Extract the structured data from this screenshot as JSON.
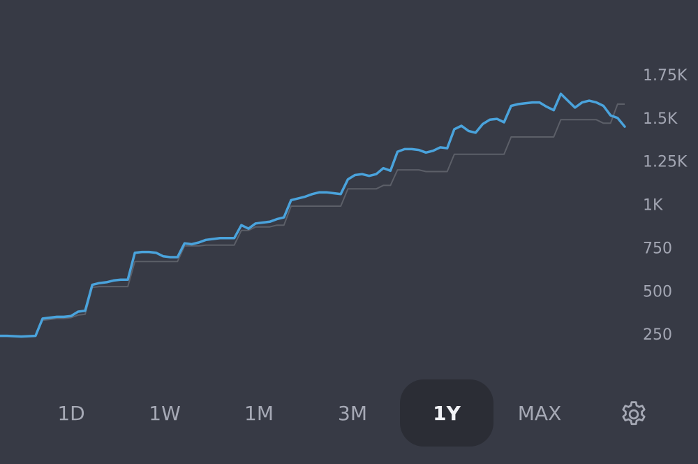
{
  "chart_data": {
    "type": "line",
    "ylim": [
      0,
      1960
    ],
    "y_ticks": [
      {
        "value": 250,
        "label": "250"
      },
      {
        "value": 500,
        "label": "500"
      },
      {
        "value": 750,
        "label": "750"
      },
      {
        "value": 1000,
        "label": "1K"
      },
      {
        "value": 1250,
        "label": "1.25K"
      },
      {
        "value": 1500,
        "label": "1.5K"
      },
      {
        "value": 1750,
        "label": "1.75K"
      }
    ],
    "grid": false,
    "legend": "none",
    "series": [
      {
        "role": "value",
        "color": "#4aa3dc",
        "values": [
          240,
          240,
          238,
          236,
          238,
          240,
          340,
          345,
          350,
          350,
          355,
          380,
          385,
          535,
          545,
          550,
          560,
          565,
          565,
          720,
          725,
          725,
          720,
          700,
          695,
          695,
          775,
          770,
          780,
          795,
          800,
          805,
          805,
          805,
          880,
          860,
          890,
          895,
          900,
          915,
          925,
          1025,
          1035,
          1045,
          1060,
          1070,
          1070,
          1065,
          1060,
          1145,
          1170,
          1175,
          1165,
          1175,
          1210,
          1195,
          1305,
          1320,
          1320,
          1315,
          1300,
          1310,
          1330,
          1325,
          1435,
          1455,
          1425,
          1415,
          1465,
          1490,
          1495,
          1475,
          1570,
          1580,
          1585,
          1590,
          1590,
          1565,
          1545,
          1640,
          1600,
          1560,
          1590,
          1600,
          1590,
          1570,
          1515,
          1500,
          1450
        ]
      },
      {
        "role": "cost-basis",
        "color": "#5c5f68",
        "values": [
          240,
          240,
          238,
          236,
          238,
          240,
          330,
          335,
          340,
          340,
          345,
          360,
          365,
          520,
          525,
          525,
          525,
          525,
          525,
          670,
          670,
          670,
          670,
          670,
          670,
          670,
          760,
          760,
          760,
          765,
          765,
          765,
          765,
          765,
          850,
          850,
          870,
          870,
          870,
          880,
          880,
          990,
          990,
          990,
          990,
          990,
          990,
          990,
          990,
          1090,
          1090,
          1090,
          1090,
          1090,
          1110,
          1110,
          1200,
          1200,
          1200,
          1200,
          1190,
          1190,
          1190,
          1190,
          1290,
          1290,
          1290,
          1290,
          1290,
          1290,
          1290,
          1290,
          1390,
          1390,
          1390,
          1390,
          1390,
          1390,
          1390,
          1490,
          1490,
          1490,
          1490,
          1490,
          1490,
          1470,
          1470,
          1580,
          1580
        ]
      }
    ]
  },
  "range_selector": {
    "buttons": [
      "1D",
      "1W",
      "1M",
      "3M",
      "1Y",
      "MAX"
    ],
    "active": "1Y"
  },
  "icons": {
    "settings": "gear-icon"
  }
}
